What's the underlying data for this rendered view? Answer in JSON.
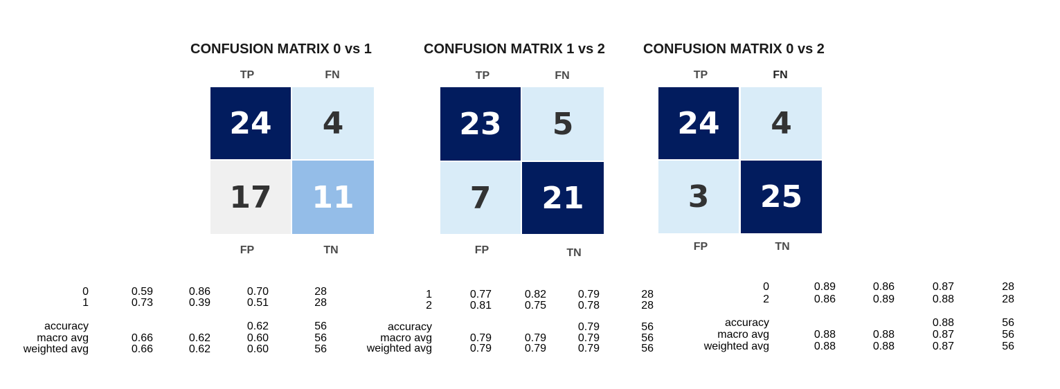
{
  "chart_data": [
    {
      "type": "heatmap",
      "title": "CONFUSION MATRIX 0 vs 1",
      "quadrant_labels": {
        "top_left": "TP",
        "top_right": "FN",
        "bottom_left": "FP",
        "bottom_right": "TN"
      },
      "cells": [
        {
          "value": "24",
          "bg": "#021c5e",
          "fg": "#ffffff"
        },
        {
          "value": "4",
          "bg": "#d9ecf8",
          "fg": "#333333"
        },
        {
          "value": "17",
          "bg": "#f0f0f0",
          "fg": "#333333"
        },
        {
          "value": "11",
          "bg": "#94bde8",
          "fg": "#ffffff"
        }
      ],
      "report": {
        "rows": [
          {
            "label": "0",
            "precision": "0.59",
            "recall": "0.86",
            "f1": "0.70",
            "support": "28"
          },
          {
            "label": "1",
            "precision": "0.73",
            "recall": "0.39",
            "f1": "0.51",
            "support": "28"
          }
        ],
        "summary": [
          {
            "label": "accuracy",
            "precision": "",
            "recall": "",
            "f1": "0.62",
            "support": "56"
          },
          {
            "label": "macro avg",
            "precision": "0.66",
            "recall": "0.62",
            "f1": "0.60",
            "support": "56"
          },
          {
            "label": "weighted avg",
            "precision": "0.66",
            "recall": "0.62",
            "f1": "0.60",
            "support": "56"
          }
        ]
      }
    },
    {
      "type": "heatmap",
      "title": "CONFUSION MATRIX 1 vs 2",
      "quadrant_labels": {
        "top_left": "TP",
        "top_right": "FN",
        "bottom_left": "FP",
        "bottom_right": "TN"
      },
      "cells": [
        {
          "value": "23",
          "bg": "#021c5e",
          "fg": "#ffffff"
        },
        {
          "value": "5",
          "bg": "#d9ecf8",
          "fg": "#333333"
        },
        {
          "value": "7",
          "bg": "#d9ecf8",
          "fg": "#333333"
        },
        {
          "value": "21",
          "bg": "#021c5e",
          "fg": "#ffffff"
        }
      ],
      "report": {
        "rows": [
          {
            "label": "1",
            "precision": "0.77",
            "recall": "0.82",
            "f1": "0.79",
            "support": "28"
          },
          {
            "label": "2",
            "precision": "0.81",
            "recall": "0.75",
            "f1": "0.78",
            "support": "28"
          }
        ],
        "summary": [
          {
            "label": "accuracy",
            "precision": "",
            "recall": "",
            "f1": "0.79",
            "support": "56"
          },
          {
            "label": "macro avg",
            "precision": "0.79",
            "recall": "0.79",
            "f1": "0.79",
            "support": "56"
          },
          {
            "label": "weighted avg",
            "precision": "0.79",
            "recall": "0.79",
            "f1": "0.79",
            "support": "56"
          }
        ]
      }
    },
    {
      "type": "heatmap",
      "title": "CONFUSION MATRIX 0 vs 2",
      "quadrant_labels": {
        "top_left": "TP",
        "top_right": "FN",
        "bottom_left": "FP",
        "bottom_right": "TN"
      },
      "cells": [
        {
          "value": "24",
          "bg": "#021c5e",
          "fg": "#ffffff"
        },
        {
          "value": "4",
          "bg": "#d9ecf8",
          "fg": "#333333"
        },
        {
          "value": "3",
          "bg": "#d9ecf8",
          "fg": "#333333"
        },
        {
          "value": "25",
          "bg": "#021c5e",
          "fg": "#ffffff"
        }
      ],
      "report": {
        "rows": [
          {
            "label": "0",
            "precision": "0.89",
            "recall": "0.86",
            "f1": "0.87",
            "support": "28"
          },
          {
            "label": "2",
            "precision": "0.86",
            "recall": "0.89",
            "f1": "0.88",
            "support": "28"
          }
        ],
        "summary": [
          {
            "label": "accuracy",
            "precision": "",
            "recall": "",
            "f1": "0.88",
            "support": "56"
          },
          {
            "label": "macro avg",
            "precision": "0.88",
            "recall": "0.88",
            "f1": "0.87",
            "support": "56"
          },
          {
            "label": "weighted avg",
            "precision": "0.88",
            "recall": "0.88",
            "f1": "0.87",
            "support": "56"
          }
        ]
      }
    }
  ]
}
